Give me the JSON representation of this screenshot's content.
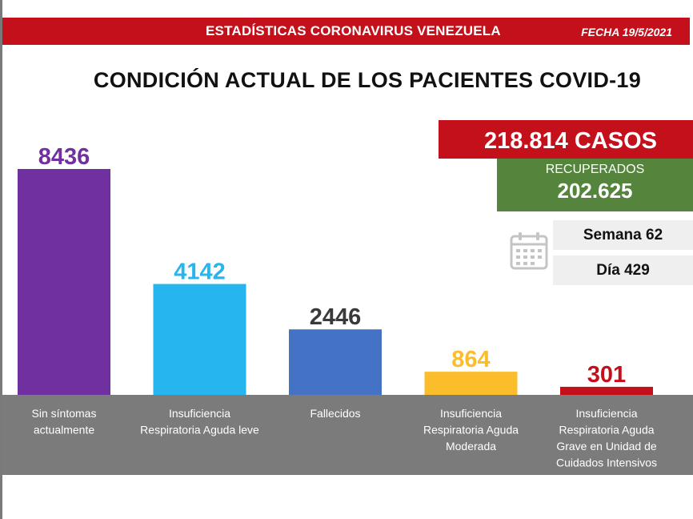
{
  "header": {
    "title": "ESTADÍSTICAS CORONAVIRUS VENEZUELA",
    "date": "FECHA 19/5/2021"
  },
  "page_title": "CONDICIÓN ACTUAL DE LOS PACIENTES COVID-19",
  "summary": {
    "casos": "218.814 CASOS",
    "recuperados_label": "RECUPERADOS",
    "recuperados_value": "202.625",
    "semana": "Semana 62",
    "dia": "Día 429"
  },
  "icons": {
    "calendar": "calendar-icon"
  },
  "colors": {
    "banner": "#c3101b",
    "recuperados": "#55853c",
    "label_band": "#7b7b7b"
  },
  "chart_data": {
    "type": "bar",
    "categories": [
      [
        "Sin síntomas",
        "actualmente"
      ],
      [
        "Insuficiencia",
        "Respiratoria Aguda leve"
      ],
      [
        "Fallecidos"
      ],
      [
        "Insuficiencia",
        "Respiratoria Aguda",
        "Moderada"
      ],
      [
        "Insuficiencia",
        "Respiratoria Aguda",
        "Grave en Unidad de",
        "Cuidados Intensivos"
      ]
    ],
    "values": [
      8436,
      4142,
      2446,
      864,
      301
    ],
    "value_labels": [
      "8436",
      "4142",
      "2446",
      "864",
      "301"
    ],
    "colors": [
      "#7030a0",
      "#26b5ee",
      "#4472c4",
      "#fbbd2b",
      "#c3101b"
    ],
    "label_colors": [
      "#7030a0",
      "#26b5ee",
      "#3a3a3a",
      "#fbbd2b",
      "#c3101b"
    ],
    "ylim": [
      0,
      8436
    ],
    "grid": false,
    "legend": "none"
  }
}
